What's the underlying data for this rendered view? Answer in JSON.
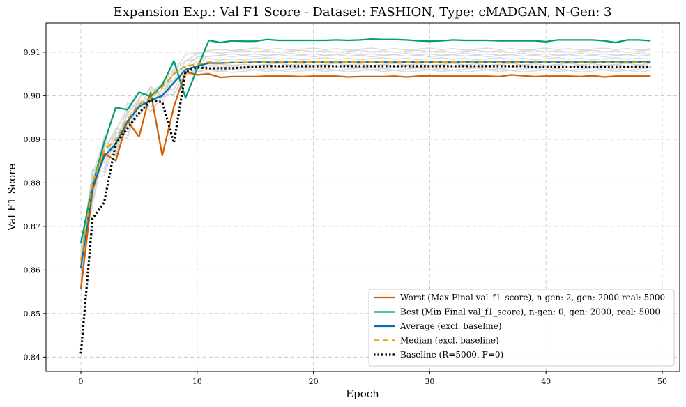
{
  "chart_data": {
    "type": "line",
    "title": "Expansion Exp.: Val F1 Score - Dataset: FASHION, Type: cMADGAN, N-Gen: 3",
    "xlabel": "Epoch",
    "ylabel": "Val F1 Score",
    "xlim": [
      -3,
      51.5
    ],
    "ylim": [
      0.8367,
      0.9167
    ],
    "xticks": [
      0,
      10,
      20,
      30,
      40,
      50
    ],
    "yticks": [
      0.84,
      0.85,
      0.86,
      0.87,
      0.88,
      0.89,
      0.9,
      0.91
    ],
    "ytick_labels": [
      "0.84",
      "0.85",
      "0.86",
      "0.87",
      "0.88",
      "0.89",
      "0.90",
      "0.91"
    ],
    "grid": true,
    "legend_position": "lower-right",
    "series": [
      {
        "name": "Worst (Max Final val_f1_score), n-gen: 2, gen: 2000 real: 5000",
        "color": "#d55e00",
        "style": "solid",
        "values": [
          0.8557,
          0.8783,
          0.8868,
          0.8851,
          0.8943,
          0.8906,
          0.9008,
          0.8863,
          0.8975,
          0.9055,
          0.9048,
          0.905,
          0.9042,
          0.9044,
          0.9044,
          0.9044,
          0.9045,
          0.9045,
          0.9045,
          0.9044,
          0.9045,
          0.9045,
          0.9045,
          0.9043,
          0.9044,
          0.9044,
          0.9044,
          0.9045,
          0.9043,
          0.9045,
          0.9046,
          0.9045,
          0.9045,
          0.9045,
          0.9045,
          0.9045,
          0.9044,
          0.9048,
          0.9046,
          0.9044,
          0.9045,
          0.9045,
          0.9045,
          0.9044,
          0.9046,
          0.9043,
          0.9045,
          0.9045,
          0.9045,
          0.9045
        ]
      },
      {
        "name": "Best (Min Final val_f1_score), n-gen: 0, gen: 2000, real: 5000",
        "color": "#009e73",
        "style": "solid",
        "values": [
          0.8662,
          0.8795,
          0.8892,
          0.8973,
          0.8968,
          0.9008,
          0.8998,
          0.9025,
          0.908,
          0.8995,
          0.9062,
          0.9127,
          0.9122,
          0.9126,
          0.9125,
          0.9125,
          0.9129,
          0.9127,
          0.9127,
          0.9127,
          0.9127,
          0.9127,
          0.9128,
          0.9127,
          0.9128,
          0.913,
          0.9129,
          0.9129,
          0.9128,
          0.9126,
          0.9125,
          0.9126,
          0.9128,
          0.9127,
          0.9127,
          0.9127,
          0.9126,
          0.9126,
          0.9126,
          0.9126,
          0.9124,
          0.9128,
          0.9128,
          0.9128,
          0.9128,
          0.9126,
          0.9122,
          0.9128,
          0.9128,
          0.9126
        ]
      },
      {
        "name": "Average (excl. baseline)",
        "color": "#0072b2",
        "style": "solid",
        "values": [
          0.8605,
          0.879,
          0.886,
          0.889,
          0.894,
          0.8975,
          0.899,
          0.9,
          0.903,
          0.906,
          0.9068,
          0.9075,
          0.9075,
          0.9076,
          0.9076,
          0.9077,
          0.9077,
          0.9077,
          0.9077,
          0.9077,
          0.9077,
          0.9077,
          0.9077,
          0.9077,
          0.9077,
          0.9077,
          0.9077,
          0.9077,
          0.9077,
          0.9077,
          0.9077,
          0.9077,
          0.9077,
          0.9077,
          0.9077,
          0.9077,
          0.9077,
          0.9077,
          0.9077,
          0.9077,
          0.9077,
          0.9077,
          0.9077,
          0.9077,
          0.9077,
          0.9077,
          0.9077,
          0.9077,
          0.9077,
          0.9078
        ]
      },
      {
        "name": "Median (excl. baseline)",
        "color": "#e69f00",
        "style": "dashed",
        "values": [
          0.862,
          0.88,
          0.8875,
          0.89,
          0.8945,
          0.898,
          0.8995,
          0.902,
          0.905,
          0.9068,
          0.9072,
          0.9077,
          0.9076,
          0.9076,
          0.9076,
          0.9076,
          0.9077,
          0.9077,
          0.9077,
          0.9077,
          0.9077,
          0.9077,
          0.9077,
          0.9077,
          0.9077,
          0.9077,
          0.9077,
          0.9077,
          0.9077,
          0.9077,
          0.9077,
          0.9077,
          0.9077,
          0.9076,
          0.9076,
          0.9076,
          0.9076,
          0.9076,
          0.9076,
          0.9076,
          0.9076,
          0.9076,
          0.9076,
          0.9076,
          0.9076,
          0.9076,
          0.9076,
          0.9076,
          0.9076,
          0.9076
        ]
      },
      {
        "name": "Baseline (R=5000, F=0)",
        "color": "#000000",
        "style": "dotted",
        "values": [
          0.8408,
          0.8718,
          0.8755,
          0.889,
          0.8925,
          0.896,
          0.899,
          0.8985,
          0.8892,
          0.9055,
          0.9065,
          0.9063,
          0.9063,
          0.9063,
          0.9065,
          0.9067,
          0.9068,
          0.9068,
          0.9068,
          0.9068,
          0.9068,
          0.9068,
          0.9068,
          0.9068,
          0.9068,
          0.9068,
          0.9068,
          0.9068,
          0.9068,
          0.9068,
          0.9068,
          0.9068,
          0.9068,
          0.9068,
          0.9068,
          0.9068,
          0.9068,
          0.9068,
          0.9068,
          0.9067,
          0.9067,
          0.9067,
          0.9067,
          0.9067,
          0.9067,
          0.9067,
          0.9067,
          0.9067,
          0.9067,
          0.9067
        ]
      }
    ],
    "background_runs": {
      "color": "#d3d3d3",
      "offsets": [
        0.0015,
        -0.0012,
        0.0025,
        -0.002,
        0.0008,
        -0.0005,
        0.0018,
        -0.0016,
        0.003,
        -0.0008
      ],
      "early_noise": [
        0.004,
        -0.003,
        0.005,
        -0.004,
        0.003,
        -0.005,
        0.002,
        0.004,
        -0.002,
        0.003
      ]
    }
  }
}
